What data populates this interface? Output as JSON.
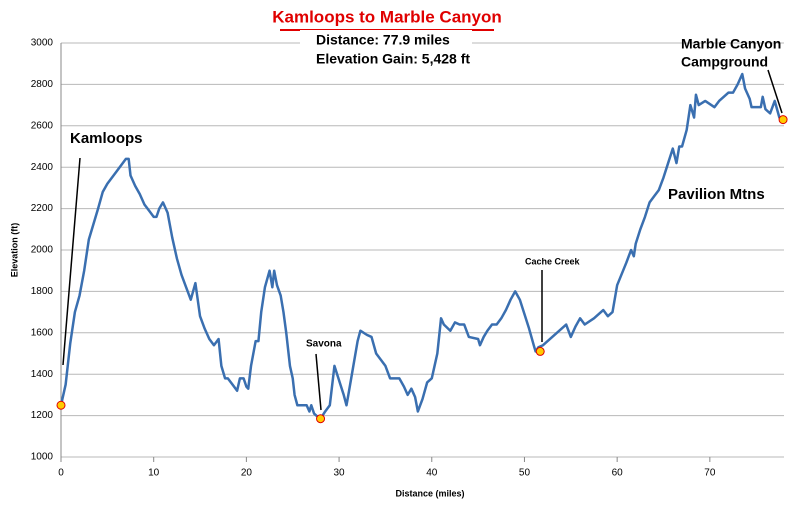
{
  "chart_data": {
    "type": "line",
    "title": "Kamloops to Marble Canyon",
    "info": [
      "Distance: 77.9 miles",
      "Elevation Gain: 5,428 ft"
    ],
    "x_label": "Distance (miles)",
    "y_label": "Elevation (ft)",
    "color": "#3a6fb0",
    "x": [
      0,
      0.5,
      1,
      1.5,
      2,
      2.5,
      3,
      4,
      4.5,
      5,
      6,
      7,
      7.3,
      7.5,
      8,
      8.5,
      9,
      9.5,
      10,
      10.3,
      10.6,
      11,
      11.5,
      12,
      12.5,
      13,
      13.5,
      14,
      14.5,
      15,
      15.5,
      16,
      16.5,
      17,
      17.3,
      17.7,
      18,
      18.5,
      19,
      19.3,
      19.7,
      20,
      20.2,
      20.5,
      21,
      21.3,
      21.6,
      22,
      22.5,
      22.8,
      23,
      23.3,
      23.7,
      24,
      24.3,
      24.7,
      25,
      25.2,
      25.5,
      26,
      26.5,
      26.8,
      27,
      27.3,
      27.8,
      28,
      28.5,
      29,
      29.5,
      30,
      30.5,
      30.8,
      31,
      31.5,
      32,
      32.3,
      33,
      33.5,
      34,
      35,
      35.5,
      36.5,
      37,
      37.4,
      37.8,
      38.2,
      38.5,
      39,
      39.5,
      40,
      40.3,
      40.6,
      41,
      41.3,
      42,
      42.5,
      43,
      43.5,
      44,
      45,
      45.2,
      45.6,
      46,
      46.5,
      47,
      47.5,
      48,
      48.5,
      49,
      49.5,
      50,
      50.5,
      51,
      51.2,
      51.5,
      52,
      53,
      54,
      54.5,
      55,
      55.5,
      56,
      56.5,
      57.5,
      58.5,
      59,
      59.5,
      60,
      61,
      61.5,
      61.8,
      62,
      62.5,
      63,
      63.5,
      64,
      64.5,
      65,
      65.5,
      66,
      66.4,
      66.7,
      67,
      67.5,
      67.9,
      68.3,
      68.5,
      68.8,
      69.5,
      70.5,
      71,
      72,
      72.5,
      73,
      73.5,
      73.8,
      74.3,
      74.5,
      75,
      75.5,
      75.7,
      76,
      76.5,
      77,
      77.5,
      77.9
    ],
    "values": [
      1250,
      1350,
      1550,
      1700,
      1780,
      1900,
      2050,
      2200,
      2280,
      2320,
      2380,
      2440,
      2440,
      2360,
      2310,
      2270,
      2220,
      2190,
      2160,
      2160,
      2200,
      2230,
      2180,
      2060,
      1960,
      1880,
      1820,
      1760,
      1840,
      1680,
      1620,
      1570,
      1540,
      1570,
      1440,
      1380,
      1380,
      1350,
      1320,
      1380,
      1380,
      1340,
      1330,
      1440,
      1560,
      1560,
      1700,
      1820,
      1900,
      1820,
      1900,
      1830,
      1780,
      1700,
      1600,
      1440,
      1380,
      1300,
      1250,
      1250,
      1250,
      1220,
      1250,
      1210,
      1190,
      1185,
      1220,
      1250,
      1440,
      1370,
      1300,
      1250,
      1300,
      1430,
      1560,
      1610,
      1590,
      1580,
      1500,
      1440,
      1380,
      1380,
      1340,
      1300,
      1330,
      1290,
      1220,
      1280,
      1360,
      1380,
      1440,
      1500,
      1670,
      1640,
      1610,
      1650,
      1640,
      1640,
      1580,
      1570,
      1540,
      1580,
      1610,
      1640,
      1640,
      1670,
      1710,
      1760,
      1800,
      1760,
      1690,
      1620,
      1540,
      1510,
      1530,
      1540,
      1580,
      1620,
      1640,
      1580,
      1630,
      1670,
      1640,
      1670,
      1710,
      1680,
      1700,
      1830,
      1940,
      2000,
      1970,
      2030,
      2100,
      2160,
      2230,
      2260,
      2290,
      2350,
      2420,
      2490,
      2420,
      2500,
      2500,
      2580,
      2700,
      2640,
      2750,
      2700,
      2720,
      2690,
      2720,
      2760,
      2760,
      2800,
      2850,
      2780,
      2730,
      2690,
      2690,
      2690,
      2740,
      2680,
      2660,
      2720,
      2640,
      2630
    ],
    "points": [
      {
        "lines": [
          "Kamloops"
        ],
        "x": 0,
        "y": 1250
      },
      {
        "lines": [
          "Savona"
        ],
        "x": 28,
        "y": 1185
      },
      {
        "lines": [
          "Cache Creek"
        ],
        "x": 51.7,
        "y": 1510
      },
      {
        "lines": [
          "Marble Canyon",
          "Campground"
        ],
        "x": 77.9,
        "y": 2630
      }
    ],
    "annotations": [
      "Pavilion Mtns"
    ],
    "marker_color": "#ffcc00",
    "xlim": [
      0,
      78
    ],
    "xticks": [
      0,
      10,
      20,
      30,
      40,
      50,
      60,
      70
    ],
    "ylim": [
      1000,
      3000
    ],
    "yticks": [
      1000,
      1200,
      1400,
      1600,
      1800,
      2000,
      2200,
      2400,
      2600,
      2800,
      3000
    ],
    "grid": true
  }
}
